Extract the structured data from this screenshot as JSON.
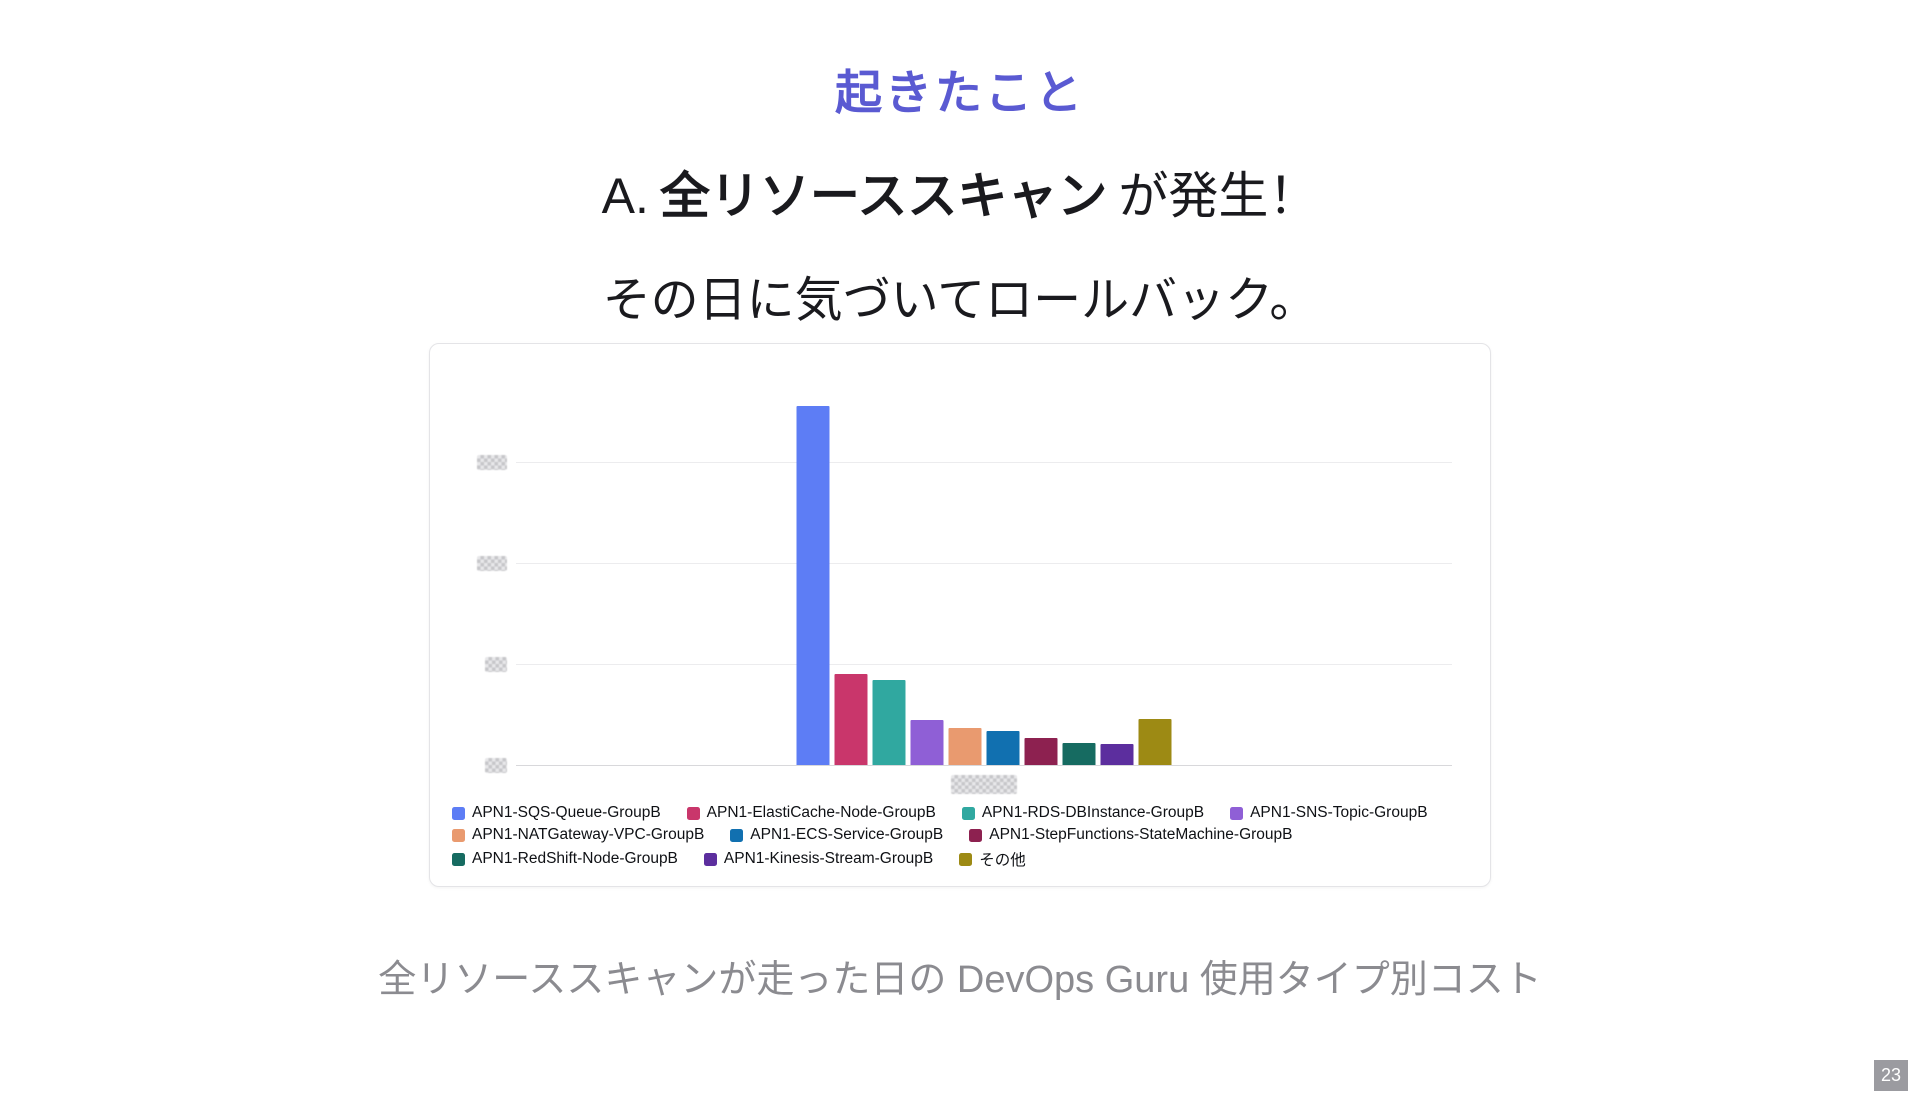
{
  "slide": {
    "title": "起きたこと",
    "line1_prefix": "A.",
    "line1_bold": "全リソーススキャン",
    "line1_suffix": "が発生！",
    "line2": "その日に気づいてロールバック。",
    "caption": "全リソーススキャンが走った日の DevOps Guru 使用タイプ別コスト",
    "page_number": "23"
  },
  "chart_data": {
    "type": "bar",
    "title": "",
    "xlabel": "",
    "ylabel": "",
    "categories": [
      "APN1-SQS-Queue-GroupB",
      "APN1-ElastiCache-Node-GroupB",
      "APN1-RDS-DBInstance-GroupB",
      "APN1-SNS-Topic-GroupB",
      "APN1-NATGateway-VPC-GroupB",
      "APN1-ECS-Service-GroupB",
      "APN1-StepFunctions-StateMachine-GroupB",
      "APN1-RedShift-Node-GroupB",
      "APN1-Kinesis-Stream-GroupB",
      "その他"
    ],
    "values": [
      3.55,
      0.9,
      0.84,
      0.45,
      0.37,
      0.34,
      0.27,
      0.22,
      0.21,
      0.46
    ],
    "units": "relative (axis tick labels pixelated/redacted in source)",
    "colors": [
      "#5d7df5",
      "#c9366b",
      "#30a8a0",
      "#8f5fd6",
      "#e99a6f",
      "#1170b0",
      "#8d2150",
      "#166b61",
      "#5c2e9e",
      "#9d8a14"
    ],
    "ylim": [
      0,
      3.96
    ],
    "y_gridlines": [
      0,
      1,
      2,
      3
    ],
    "y_ticks_redacted": true,
    "x_tick_redacted": true,
    "grid": true,
    "legend_position": "bottom",
    "legend_rows": [
      [
        0,
        1,
        2,
        3
      ],
      [
        4,
        5,
        6
      ],
      [
        7,
        8,
        9
      ]
    ]
  }
}
